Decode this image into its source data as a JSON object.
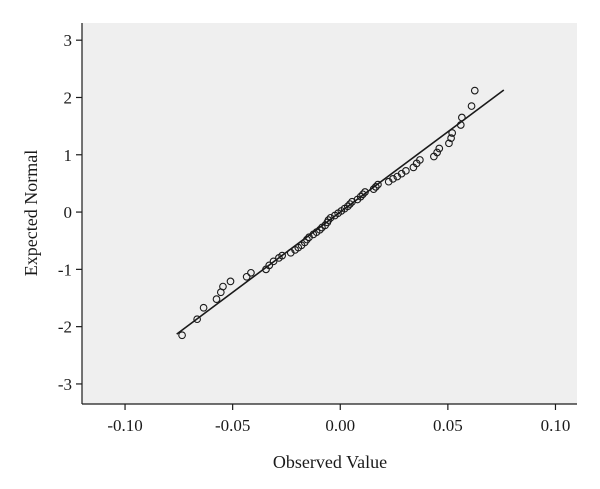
{
  "chart_data": {
    "type": "scatter",
    "title": "",
    "xlabel": "Observed Value",
    "ylabel": "Expected Normal",
    "xlim": [
      -0.12,
      0.11
    ],
    "ylim": [
      -3.35,
      3.3
    ],
    "xticks": [
      -0.1,
      -0.05,
      0.0,
      0.05,
      0.1
    ],
    "xtick_labels": [
      "-0.10",
      "-0.05",
      "0.00",
      "0.05",
      "0.10"
    ],
    "yticks": [
      3,
      2,
      1,
      0,
      -1,
      -2,
      -3
    ],
    "ytick_labels": [
      "3",
      "2",
      "1",
      "0",
      "-1",
      "-2",
      "-3"
    ],
    "grid": false,
    "plot_background": "#efefef",
    "point_color": "#1a1a1a",
    "line_color": "#1a1a1a",
    "reference_line": {
      "x": [
        -0.076,
        0.076
      ],
      "y": [
        -2.13,
        2.13
      ]
    },
    "series": [
      {
        "points": [
          [
            -0.0735,
            -2.15
          ],
          [
            -0.0665,
            -1.87
          ],
          [
            -0.0635,
            -1.67
          ],
          [
            -0.0575,
            -1.52
          ],
          [
            -0.0555,
            -1.4
          ],
          [
            -0.0545,
            -1.3
          ],
          [
            -0.051,
            -1.21
          ],
          [
            -0.0435,
            -1.13
          ],
          [
            -0.0415,
            -1.06
          ],
          [
            -0.0345,
            -1.0
          ],
          [
            -0.033,
            -0.93
          ],
          [
            -0.031,
            -0.86
          ],
          [
            -0.0285,
            -0.8
          ],
          [
            -0.027,
            -0.76
          ],
          [
            -0.023,
            -0.71
          ],
          [
            -0.021,
            -0.66
          ],
          [
            -0.0195,
            -0.62
          ],
          [
            -0.018,
            -0.58
          ],
          [
            -0.0165,
            -0.53
          ],
          [
            -0.0155,
            -0.48
          ],
          [
            -0.0145,
            -0.44
          ],
          [
            -0.0125,
            -0.39
          ],
          [
            -0.011,
            -0.35
          ],
          [
            -0.0095,
            -0.31
          ],
          [
            -0.0085,
            -0.27
          ],
          [
            -0.007,
            -0.23
          ],
          [
            -0.006,
            -0.18
          ],
          [
            -0.0055,
            -0.14
          ],
          [
            -0.0045,
            -0.1
          ],
          [
            -0.0025,
            -0.06
          ],
          [
            -0.001,
            -0.02
          ],
          [
            0.0005,
            0.02
          ],
          [
            0.002,
            0.06
          ],
          [
            0.0035,
            0.1
          ],
          [
            0.0045,
            0.14
          ],
          [
            0.0055,
            0.18
          ],
          [
            0.008,
            0.22
          ],
          [
            0.0095,
            0.27
          ],
          [
            0.0105,
            0.31
          ],
          [
            0.0115,
            0.35
          ],
          [
            0.0155,
            0.4
          ],
          [
            0.0165,
            0.44
          ],
          [
            0.0175,
            0.48
          ],
          [
            0.0225,
            0.53
          ],
          [
            0.0245,
            0.58
          ],
          [
            0.0265,
            0.62
          ],
          [
            0.0285,
            0.67
          ],
          [
            0.0305,
            0.72
          ],
          [
            0.034,
            0.78
          ],
          [
            0.0355,
            0.85
          ],
          [
            0.037,
            0.91
          ],
          [
            0.0435,
            0.97
          ],
          [
            0.045,
            1.04
          ],
          [
            0.046,
            1.11
          ],
          [
            0.0505,
            1.2
          ],
          [
            0.0515,
            1.29
          ],
          [
            0.052,
            1.38
          ],
          [
            0.056,
            1.52
          ],
          [
            0.0565,
            1.65
          ],
          [
            0.061,
            1.85
          ],
          [
            0.0625,
            2.12
          ]
        ]
      }
    ]
  }
}
